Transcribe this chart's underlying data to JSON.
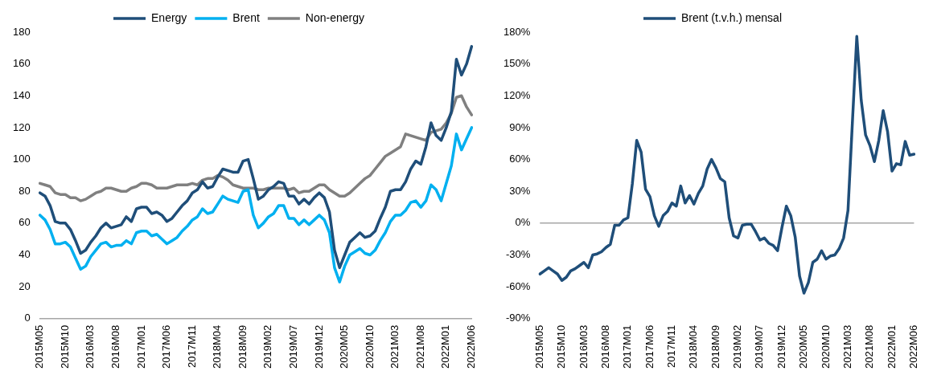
{
  "chart_data": [
    {
      "type": "line",
      "categories": [
        "2015M05",
        null,
        null,
        null,
        null,
        "2015M10",
        null,
        null,
        null,
        null,
        "2016M03",
        null,
        null,
        null,
        null,
        "2016M08",
        null,
        null,
        null,
        null,
        "2017M01",
        null,
        null,
        null,
        null,
        "2017M06",
        null,
        null,
        null,
        null,
        "2017M11",
        null,
        null,
        null,
        null,
        "2018M04",
        null,
        null,
        null,
        null,
        "2018M09",
        null,
        null,
        null,
        null,
        "2019M02",
        null,
        null,
        null,
        null,
        "2019M07",
        null,
        null,
        null,
        null,
        "2019M12",
        null,
        null,
        null,
        null,
        "2020M05",
        null,
        null,
        null,
        null,
        "2020M10",
        null,
        null,
        null,
        null,
        "2021M03",
        null,
        null,
        null,
        null,
        "2021M08",
        null,
        null,
        null,
        null,
        "2022M01",
        null,
        null,
        null,
        null,
        "2022M06"
      ],
      "series": [
        {
          "name": "Energy",
          "color": "#1f4e79",
          "values": [
            79,
            77,
            71,
            61,
            60,
            60,
            56,
            49,
            41,
            43,
            48,
            52,
            57,
            60,
            57,
            58,
            59,
            64,
            61,
            69,
            70,
            70,
            66,
            67,
            65,
            61,
            63,
            67,
            71,
            74,
            79,
            81,
            86,
            82,
            83,
            89,
            94,
            93,
            92,
            92,
            99,
            100,
            88,
            75,
            77,
            81,
            83,
            86,
            85,
            77,
            77,
            72,
            75,
            72,
            76,
            79,
            76,
            67,
            43,
            32,
            40,
            48,
            51,
            54,
            51,
            52,
            55,
            63,
            70,
            80,
            81,
            81,
            86,
            94,
            99,
            97,
            108,
            123,
            115,
            112,
            120,
            130,
            163,
            153,
            160,
            171
          ]
        },
        {
          "name": "Brent",
          "color": "#00b0f0",
          "values": [
            65,
            62,
            56,
            47,
            47,
            48,
            45,
            38,
            31,
            33,
            39,
            43,
            47,
            48,
            45,
            46,
            46,
            49,
            47,
            54,
            55,
            55,
            52,
            53,
            50,
            47,
            49,
            51,
            55,
            58,
            62,
            64,
            69,
            66,
            67,
            72,
            77,
            75,
            74,
            73,
            80,
            81,
            65,
            57,
            60,
            64,
            66,
            71,
            71,
            63,
            63,
            59,
            62,
            59,
            62,
            65,
            62,
            54,
            32,
            23,
            33,
            40,
            42,
            44,
            41,
            40,
            43,
            49,
            54,
            61,
            65,
            65,
            68,
            73,
            74,
            70,
            74,
            84,
            81,
            74,
            85,
            96,
            116,
            106,
            113,
            120
          ]
        },
        {
          "name": "Non-energy",
          "color": "#808080",
          "values": [
            85,
            84,
            83,
            79,
            78,
            78,
            76,
            76,
            74,
            75,
            77,
            79,
            80,
            82,
            82,
            81,
            80,
            80,
            82,
            83,
            85,
            85,
            84,
            82,
            82,
            82,
            83,
            84,
            84,
            84,
            85,
            84,
            87,
            88,
            88,
            90,
            89,
            87,
            84,
            83,
            82,
            82,
            82,
            81,
            81,
            82,
            82,
            82,
            82,
            81,
            82,
            79,
            80,
            80,
            82,
            84,
            84,
            81,
            79,
            77,
            77,
            79,
            82,
            85,
            88,
            90,
            94,
            98,
            102,
            104,
            106,
            108,
            116,
            115,
            114,
            113,
            112,
            117,
            118,
            119,
            123,
            129,
            139,
            140,
            133,
            128
          ]
        }
      ],
      "ylim": [
        0,
        180
      ],
      "yticks": [
        0,
        20,
        40,
        60,
        80,
        100,
        120,
        140,
        160,
        180
      ],
      "grid": false,
      "legend": "top",
      "marker": "none"
    },
    {
      "type": "line",
      "categories": [
        "2015M05",
        null,
        null,
        null,
        null,
        "2015M10",
        null,
        null,
        null,
        null,
        "2016M03",
        null,
        null,
        null,
        null,
        "2016M08",
        null,
        null,
        null,
        null,
        "2017M01",
        null,
        null,
        null,
        null,
        "2017M06",
        null,
        null,
        null,
        null,
        "2017M11",
        null,
        null,
        null,
        null,
        "2018M04",
        null,
        null,
        null,
        null,
        "2018M09",
        null,
        null,
        null,
        null,
        "2019M02",
        null,
        null,
        null,
        null,
        "2019M07",
        null,
        null,
        null,
        null,
        "2019M12",
        null,
        null,
        null,
        null,
        "2020M05",
        null,
        null,
        null,
        null,
        "2020M10",
        null,
        null,
        null,
        null,
        "2021M03",
        null,
        null,
        null,
        null,
        "2021M08",
        null,
        null,
        null,
        null,
        "2022M01",
        null,
        null,
        null,
        null,
        "2022M06"
      ],
      "series": [
        {
          "name": "Brent (t.v.h.) mensal",
          "color": "#1f4e79",
          "values": [
            -48,
            -45,
            -42,
            -45,
            -48,
            -54,
            -51,
            -45,
            -43,
            -40,
            -37,
            -42,
            -30,
            -29,
            -27,
            -23,
            -20,
            -2,
            -2,
            3,
            5,
            37,
            78,
            67,
            32,
            25,
            7,
            -3,
            7,
            11,
            19,
            16,
            35,
            19,
            26,
            18,
            28,
            35,
            51,
            60,
            52,
            42,
            39,
            5,
            -12,
            -14,
            -2,
            -1,
            -1,
            -8,
            -16,
            -14,
            -19,
            -21,
            -26,
            -4,
            16,
            7,
            -13,
            -50,
            -66,
            -56,
            -37,
            -34,
            -26,
            -34,
            -31,
            -30,
            -24,
            -14,
            12,
            95,
            176,
            116,
            83,
            73,
            58,
            78,
            106,
            86,
            49,
            56,
            55,
            77,
            64,
            65
          ]
        }
      ],
      "ylim": [
        -90,
        180
      ],
      "yticks": [
        {
          "value": -90,
          "label": "-90%"
        },
        {
          "value": -60,
          "label": "-60%"
        },
        {
          "value": -30,
          "label": "-30%"
        },
        {
          "value": 0,
          "label": "0%"
        },
        {
          "value": 30,
          "label": "30%"
        },
        {
          "value": 60,
          "label": "60%"
        },
        {
          "value": 90,
          "label": "90%"
        },
        {
          "value": 120,
          "label": "120%"
        },
        {
          "value": 150,
          "label": "150%"
        },
        {
          "value": 180,
          "label": "180%"
        }
      ],
      "grid": false,
      "legend": "top",
      "marker": "none",
      "ref_lines": [
        {
          "axis": "y",
          "value": 0,
          "color": "#a6a6a6"
        }
      ]
    }
  ]
}
